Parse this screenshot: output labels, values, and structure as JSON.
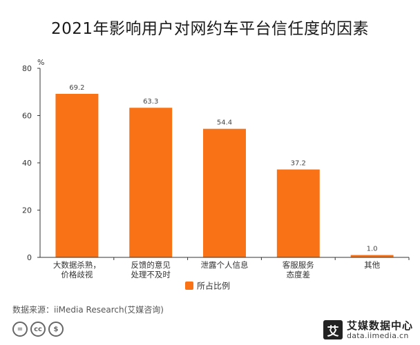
{
  "title": "2021年影响用户对网约车平台信任度的因素",
  "source": "数据来源：iiMedia Research(艾媒咨询)",
  "logo": {
    "mark": "艾",
    "name": "艾媒数据中心",
    "url": "data.iimedia.cn"
  },
  "license_icons": [
    "=",
    "cc",
    "$"
  ],
  "colors": {
    "bar": "#F97316",
    "axis": "#333333",
    "text": "#333333"
  },
  "chart_data": {
    "type": "bar",
    "title": "2021年影响用户对网约车平台信任度的因素",
    "xlabel": "",
    "ylabel": "%",
    "ylim": [
      0,
      80
    ],
    "yticks": [
      0,
      20,
      40,
      60,
      80
    ],
    "grid": false,
    "legend_position": "bottom",
    "categories": [
      [
        "大数据杀熟，",
        "价格歧视"
      ],
      [
        "反馈的意见",
        "处理不及时"
      ],
      [
        "泄露个人信息"
      ],
      [
        "客服服务",
        "态度差"
      ],
      [
        "其他"
      ]
    ],
    "series": [
      {
        "name": "所占比例",
        "values": [
          69.2,
          63.3,
          54.4,
          37.2,
          1.0
        ],
        "labels": [
          "69.2",
          "63.3",
          "54.4",
          "37.2",
          "1.0"
        ]
      }
    ]
  }
}
